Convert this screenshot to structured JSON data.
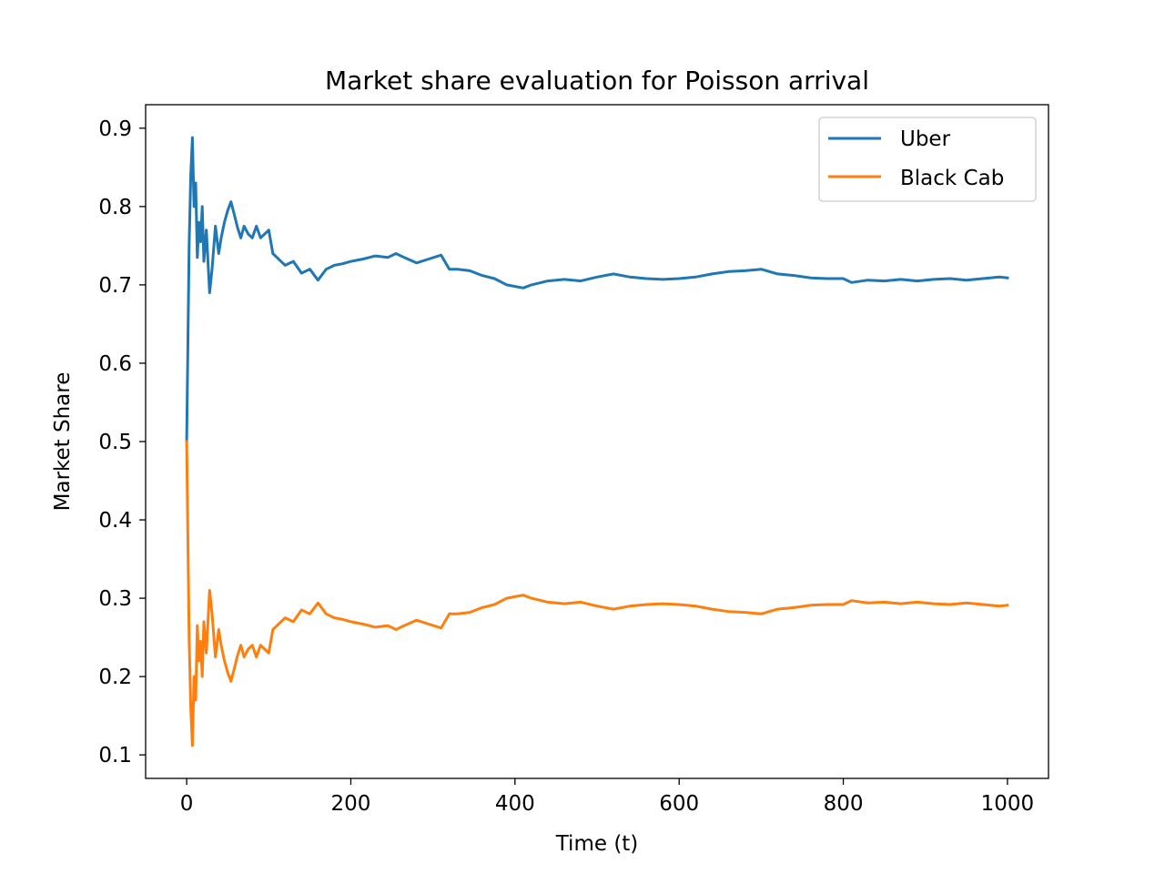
{
  "chart_data": {
    "type": "line",
    "title": "Market share evaluation for Poisson arrival",
    "xlabel": "Time (t)",
    "ylabel": "Market Share",
    "xlim": [
      -50,
      1050
    ],
    "ylim": [
      0.07,
      0.93
    ],
    "xticks": [
      0,
      200,
      400,
      600,
      800,
      1000
    ],
    "yticks": [
      0.1,
      0.2,
      0.3,
      0.4,
      0.5,
      0.6,
      0.7,
      0.8,
      0.9
    ],
    "xtick_labels": [
      "0",
      "200",
      "400",
      "600",
      "800",
      "1000"
    ],
    "ytick_labels": [
      "0.1",
      "0.2",
      "0.3",
      "0.4",
      "0.5",
      "0.6",
      "0.7",
      "0.8",
      "0.9"
    ],
    "grid": false,
    "legend_position": "top-right",
    "series": [
      {
        "name": "Uber",
        "color": "#1f77b4",
        "x": [
          0,
          3,
          5,
          7,
          9,
          11,
          13,
          15,
          17,
          19,
          21,
          24,
          28,
          31,
          35,
          39,
          42,
          46,
          50,
          54,
          58,
          62,
          66,
          70,
          75,
          80,
          85,
          90,
          95,
          100,
          105,
          110,
          120,
          130,
          140,
          150,
          160,
          170,
          180,
          190,
          200,
          215,
          230,
          245,
          255,
          265,
          280,
          295,
          310,
          320,
          330,
          345,
          360,
          375,
          390,
          400,
          410,
          420,
          440,
          460,
          480,
          500,
          520,
          540,
          560,
          580,
          600,
          620,
          640,
          660,
          680,
          700,
          720,
          740,
          760,
          780,
          800,
          810,
          830,
          850,
          870,
          890,
          910,
          930,
          950,
          970,
          990,
          1000
        ],
        "y": [
          0.5,
          0.75,
          0.84,
          0.888,
          0.8,
          0.83,
          0.735,
          0.78,
          0.755,
          0.8,
          0.73,
          0.77,
          0.69,
          0.72,
          0.775,
          0.74,
          0.76,
          0.78,
          0.795,
          0.806,
          0.79,
          0.773,
          0.76,
          0.775,
          0.765,
          0.76,
          0.775,
          0.76,
          0.765,
          0.77,
          0.74,
          0.735,
          0.725,
          0.73,
          0.715,
          0.72,
          0.706,
          0.72,
          0.725,
          0.727,
          0.73,
          0.733,
          0.737,
          0.735,
          0.74,
          0.735,
          0.728,
          0.733,
          0.738,
          0.72,
          0.72,
          0.718,
          0.712,
          0.708,
          0.7,
          0.698,
          0.696,
          0.7,
          0.705,
          0.707,
          0.705,
          0.71,
          0.714,
          0.71,
          0.708,
          0.707,
          0.708,
          0.71,
          0.714,
          0.717,
          0.718,
          0.72,
          0.714,
          0.712,
          0.709,
          0.708,
          0.708,
          0.703,
          0.706,
          0.705,
          0.707,
          0.705,
          0.707,
          0.708,
          0.706,
          0.708,
          0.71,
          0.709
        ]
      },
      {
        "name": "Black Cab",
        "color": "#ff7f0e",
        "x": [
          0,
          3,
          5,
          7,
          9,
          11,
          13,
          15,
          17,
          19,
          21,
          24,
          28,
          31,
          35,
          39,
          42,
          46,
          50,
          54,
          58,
          62,
          66,
          70,
          75,
          80,
          85,
          90,
          95,
          100,
          105,
          110,
          120,
          130,
          140,
          150,
          160,
          170,
          180,
          190,
          200,
          215,
          230,
          245,
          255,
          265,
          280,
          295,
          310,
          320,
          330,
          345,
          360,
          375,
          390,
          400,
          410,
          420,
          440,
          460,
          480,
          500,
          520,
          540,
          560,
          580,
          600,
          620,
          640,
          660,
          680,
          700,
          720,
          740,
          760,
          780,
          800,
          810,
          830,
          850,
          870,
          890,
          910,
          930,
          950,
          970,
          990,
          1000
        ],
        "y": [
          0.5,
          0.25,
          0.16,
          0.112,
          0.2,
          0.17,
          0.265,
          0.22,
          0.245,
          0.2,
          0.27,
          0.23,
          0.31,
          0.28,
          0.225,
          0.26,
          0.24,
          0.22,
          0.205,
          0.194,
          0.21,
          0.227,
          0.24,
          0.225,
          0.235,
          0.24,
          0.225,
          0.24,
          0.235,
          0.23,
          0.26,
          0.265,
          0.275,
          0.27,
          0.285,
          0.28,
          0.294,
          0.28,
          0.275,
          0.273,
          0.27,
          0.267,
          0.263,
          0.265,
          0.26,
          0.265,
          0.272,
          0.267,
          0.262,
          0.28,
          0.28,
          0.282,
          0.288,
          0.292,
          0.3,
          0.302,
          0.304,
          0.3,
          0.295,
          0.293,
          0.295,
          0.29,
          0.286,
          0.29,
          0.292,
          0.293,
          0.292,
          0.29,
          0.286,
          0.283,
          0.282,
          0.28,
          0.286,
          0.288,
          0.291,
          0.292,
          0.292,
          0.297,
          0.294,
          0.295,
          0.293,
          0.295,
          0.293,
          0.292,
          0.294,
          0.292,
          0.29,
          0.291
        ]
      }
    ]
  }
}
